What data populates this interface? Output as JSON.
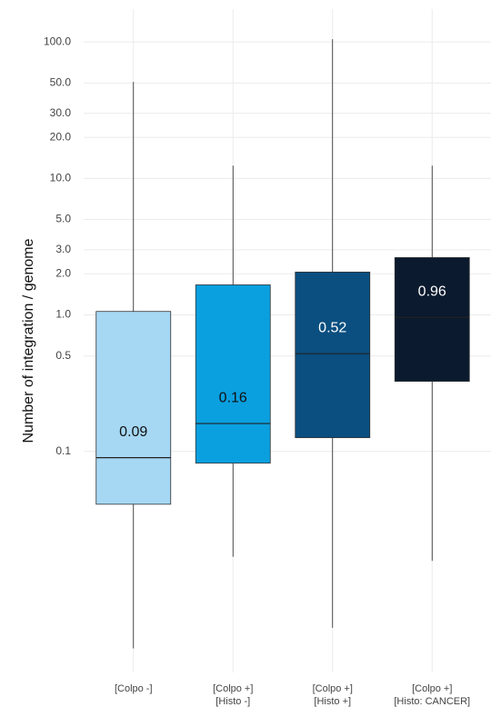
{
  "chart_data": {
    "type": "boxplot",
    "y_label": "Number of integration / genome",
    "log_y": true,
    "grid": true,
    "categories": [
      [
        "[Colpo -]"
      ],
      [
        "[Colpo +]",
        "[Histo -]"
      ],
      [
        "[Colpo +]",
        "[Histo +]"
      ],
      [
        "[Colpo +]",
        "[Histo: CANCER]"
      ]
    ],
    "colors": [
      "#a6d8f4",
      "#0aa0e0",
      "#0a4f80",
      "#0b1a2e"
    ],
    "label_colors": [
      "#111111",
      "#111111",
      "#ffffff",
      "#ffffff"
    ],
    "min": [
      0.0036,
      0.0169,
      0.0051,
      0.0158
    ],
    "q1": [
      0.041,
      0.082,
      0.126,
      0.326
    ],
    "median": [
      0.09,
      0.16,
      0.52,
      0.96
    ],
    "q3": [
      1.06,
      1.66,
      2.06,
      2.63
    ],
    "max": [
      50.9,
      12.4,
      104.7,
      12.4
    ],
    "ylim": [
      0.0024,
      174
    ],
    "yticks": [
      0.1,
      {
        "value": 0.5,
        "label": "0.5"
      },
      {
        "value": 1,
        "label": "1.0"
      },
      {
        "value": 2,
        "label": "2.0"
      },
      {
        "value": 3,
        "label": "3.0"
      },
      {
        "value": 5,
        "label": "5.0"
      },
      {
        "value": 10,
        "label": "10.0"
      },
      {
        "value": 20,
        "label": "20.0"
      },
      {
        "value": 30,
        "label": "30.0"
      },
      {
        "value": 50,
        "label": "50.0"
      },
      {
        "value": 100,
        "label": "100.0"
      }
    ]
  }
}
